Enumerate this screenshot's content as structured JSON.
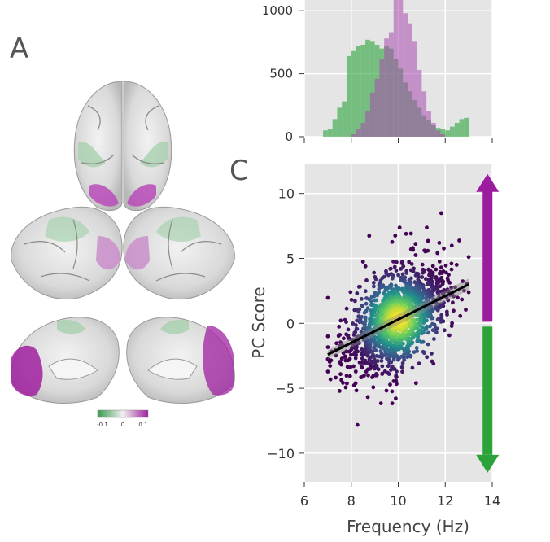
{
  "panels": {
    "a_label": "A",
    "c_label": "C"
  },
  "colorbar": {
    "min_label": "-0.1",
    "mid_label": "0",
    "max_label": "0.1",
    "low_color": "#3a9a4e",
    "mid_color": "#f0f0f0",
    "high_color": "#a0209f"
  },
  "colors": {
    "green": "#2ca33a",
    "purple": "#9c1ca0",
    "panel_bg": "#e5e5e5"
  },
  "chart_data": [
    {
      "type": "bar",
      "xlim": [
        6,
        14
      ],
      "ylim": [
        0,
        1150
      ],
      "yticks": [
        0,
        500,
        1000
      ],
      "ytick_labels": [
        "0",
        "500",
        "1000"
      ],
      "xticks": [
        6,
        8,
        10,
        12,
        14
      ],
      "grid": true,
      "bin_width": 0.2,
      "series": [
        {
          "color": "#2ca33a",
          "bins_start": 6.8,
          "values": [
            50,
            60,
            140,
            230,
            280,
            640,
            680,
            720,
            730,
            770,
            760,
            730,
            700,
            720,
            700,
            620,
            540,
            430,
            360,
            290,
            230,
            170,
            130,
            90,
            70,
            60,
            50,
            80,
            110,
            140,
            150
          ]
        },
        {
          "color": "#a84ab0",
          "bins_start": 7.8,
          "values": [
            0,
            20,
            60,
            110,
            200,
            350,
            460,
            620,
            780,
            830,
            1100,
            1200,
            980,
            900,
            760,
            530,
            360,
            200,
            110,
            50,
            20
          ]
        }
      ]
    },
    {
      "type": "scatter",
      "xlabel": "Frequency (Hz)",
      "ylabel": "PC Score",
      "xlim": [
        6,
        14
      ],
      "ylim": [
        -12.2,
        12.3
      ],
      "xticks": [
        6,
        8,
        10,
        12,
        14
      ],
      "xtick_labels": [
        "6",
        "8",
        "10",
        "12",
        "14"
      ],
      "yticks": [
        -10,
        -5,
        0,
        5,
        10
      ],
      "ytick_labels": [
        "−10",
        "−5",
        "0",
        "5",
        "10"
      ],
      "grid": true,
      "n_points": 1500,
      "fit_line": {
        "x": [
          7,
          13
        ],
        "y": [
          -2.4,
          3.0
        ],
        "color": "#000000"
      },
      "arrow_up_color": "#9c1ca0",
      "arrow_down_color": "#2ca33a"
    }
  ]
}
